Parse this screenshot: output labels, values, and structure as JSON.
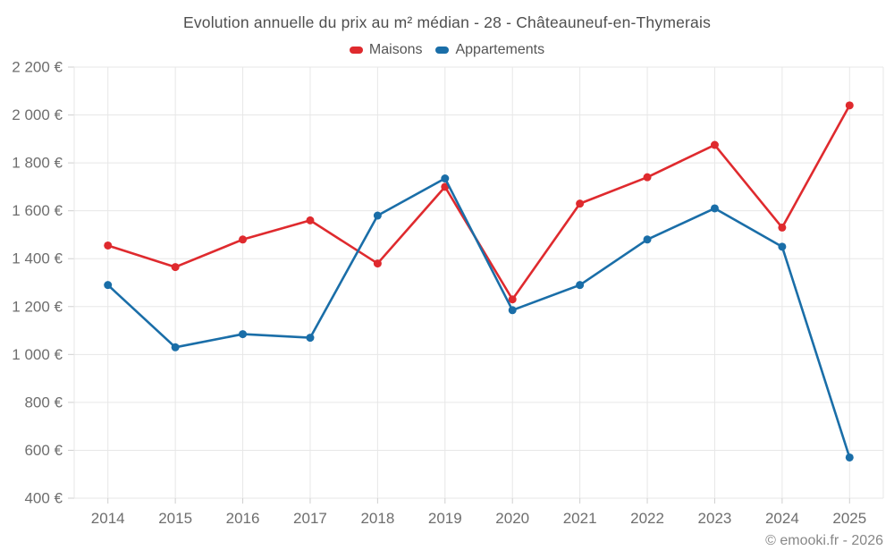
{
  "chart_data": {
    "type": "line",
    "title": "Evolution annuelle du prix au m² médian - 28 - Châteauneuf-en-Thymerais",
    "categories": [
      "2014",
      "2015",
      "2016",
      "2017",
      "2018",
      "2019",
      "2020",
      "2021",
      "2022",
      "2023",
      "2024",
      "2025"
    ],
    "series": [
      {
        "name": "Maisons",
        "color": "#df2a2e",
        "values": [
          1455,
          1365,
          1480,
          1560,
          1380,
          1700,
          1230,
          1630,
          1740,
          1875,
          1530,
          2040
        ]
      },
      {
        "name": "Appartements",
        "color": "#1a6ea8",
        "values": [
          1290,
          1030,
          1085,
          1070,
          1580,
          1735,
          1185,
          1290,
          1480,
          1610,
          1450,
          570
        ]
      }
    ],
    "xlabel": "",
    "ylabel": "",
    "ylim": [
      400,
      2200
    ],
    "ytick_step": 200,
    "ytick_suffix": " €",
    "grid": true,
    "legend_position": "top",
    "grid_color": "#e7e7e7",
    "tick_color": "#cfcfcf"
  },
  "footer": {
    "copyright": "© emooki.fr - 2026"
  }
}
